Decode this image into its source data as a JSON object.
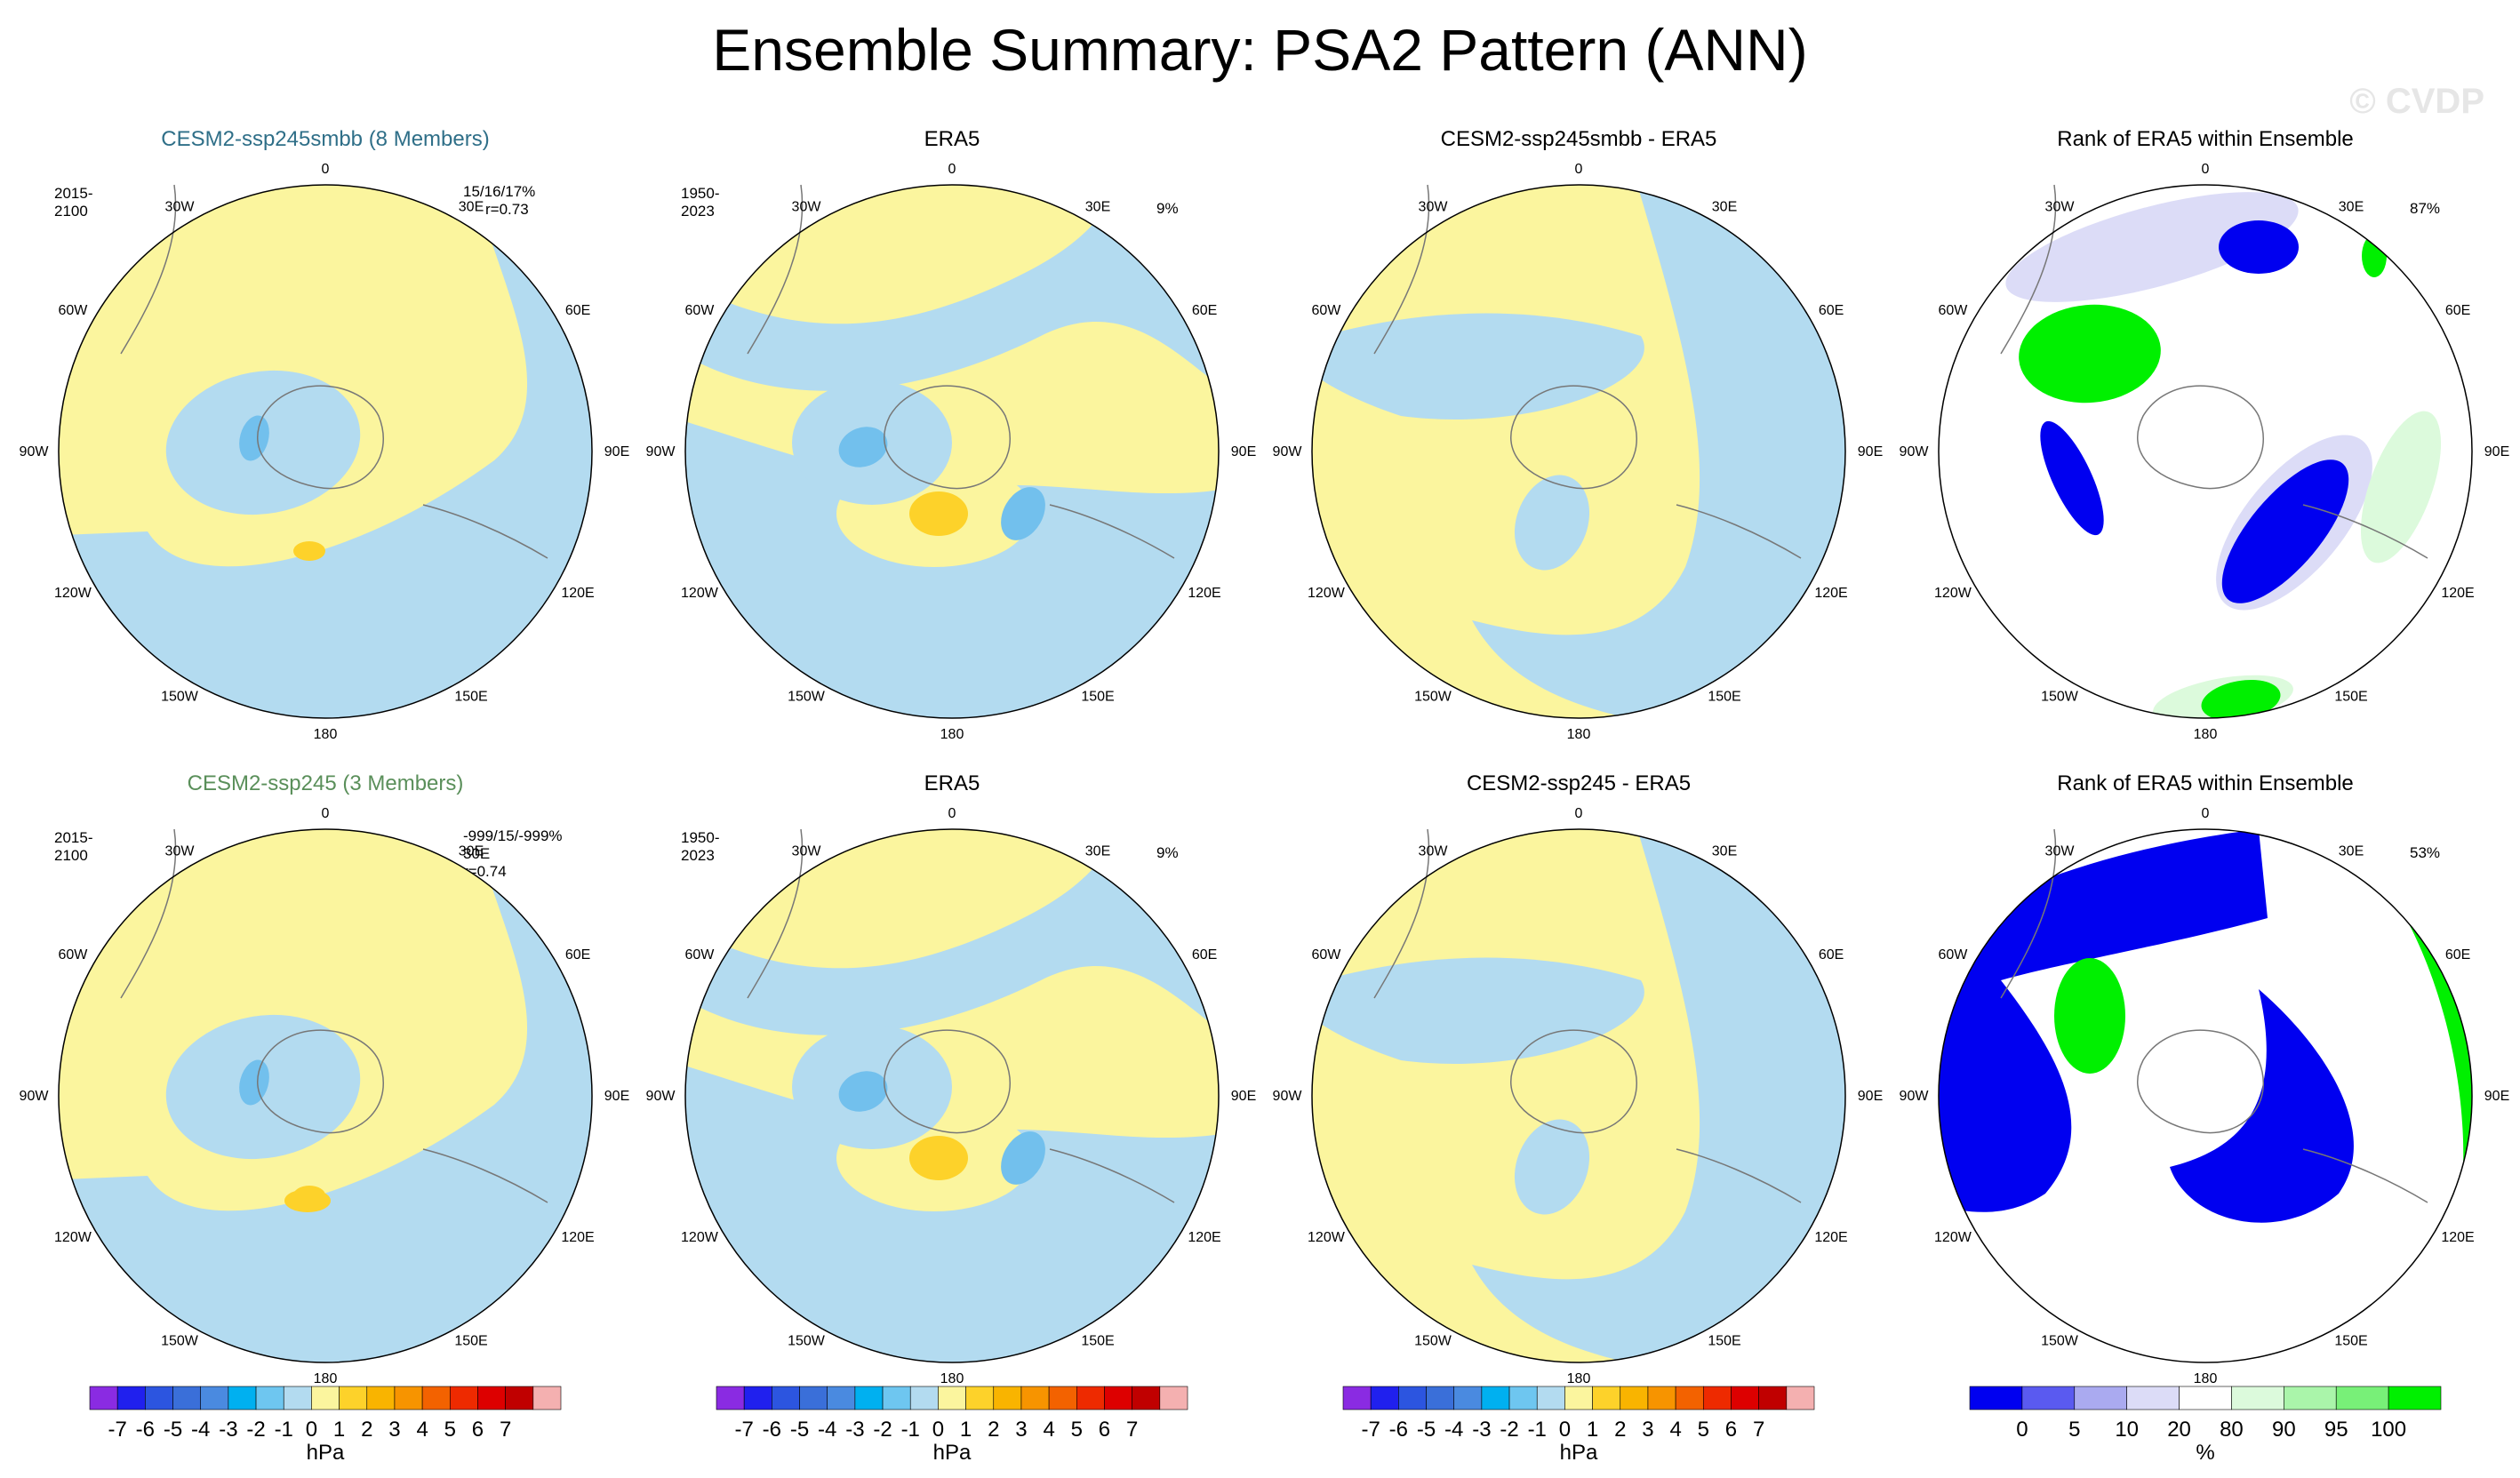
{
  "title": "Ensemble Summary: PSA2 Pattern (ANN)",
  "watermark": "© CVDP",
  "colors": {
    "ocean_neg": "#b3dbf0",
    "land_pos": "#fbf59e",
    "core_neg": "#72c0ed",
    "core_pos": "#fdd22a",
    "rank_low": "#0000f0",
    "rank_high": "#00f000",
    "rank_mid_low": "#dcdcf7",
    "rank_mid_high": "#dcfadc"
  },
  "lon_labels": [
    "0",
    "30E",
    "60E",
    "90E",
    "120E",
    "150E",
    "180",
    "150W",
    "120W",
    "90W",
    "60W",
    "30W"
  ],
  "rows": [
    {
      "model": {
        "title": "CESM2-ssp245smbb (8 Members)",
        "years": "2015-2100",
        "stats1": "15/16/17%",
        "stats2": "r=0.73",
        "title_color": "#2f6f88"
      },
      "obs": {
        "title": "ERA5",
        "years": "1950-2023",
        "pct": "9%"
      },
      "diff": {
        "title": "CESM2-ssp245smbb - ERA5"
      },
      "rank": {
        "title": "Rank of ERA5 within Ensemble",
        "pct": "87%"
      }
    },
    {
      "model": {
        "title": "CESM2-ssp245 (3 Members)",
        "years": "2015-2100",
        "stats1": "-999/15/-999%",
        "stats2": "30E r=0.74",
        "title_color": "#5a8f5a"
      },
      "obs": {
        "title": "ERA5",
        "years": "1950-2023",
        "pct": "9%"
      },
      "diff": {
        "title": "CESM2-ssp245 - ERA5"
      },
      "rank": {
        "title": "Rank of ERA5 within Ensemble",
        "pct": "53%"
      }
    }
  ],
  "chart_data": [
    {
      "type": "colorbar",
      "units": "hPa",
      "ticks": [
        "-7",
        "-6",
        "-5",
        "-4",
        "-3",
        "-2",
        "-1",
        "0",
        "1",
        "2",
        "3",
        "4",
        "5",
        "6",
        "7"
      ],
      "colors": [
        "#8a2be2",
        "#2020ee",
        "#2c55e0",
        "#3a6fd9",
        "#4a8ae0",
        "#00b0f0",
        "#6ec6f0",
        "#b3dbf0",
        "#fbf59e",
        "#fdd22a",
        "#f9b400",
        "#f79400",
        "#f36200",
        "#ee2a00",
        "#dd0000",
        "#c00000",
        "#f4b0b0"
      ]
    },
    {
      "type": "colorbar",
      "units": "%",
      "ticks": [
        "0",
        "5",
        "10",
        "20",
        "80",
        "90",
        "95",
        "100"
      ],
      "colors": [
        "#0000f0",
        "#5a5af0",
        "#aaaaf0",
        "#dcdcf7",
        "#ffffff",
        "#dcfadc",
        "#aaf5aa",
        "#78f078",
        "#00f000"
      ]
    }
  ]
}
